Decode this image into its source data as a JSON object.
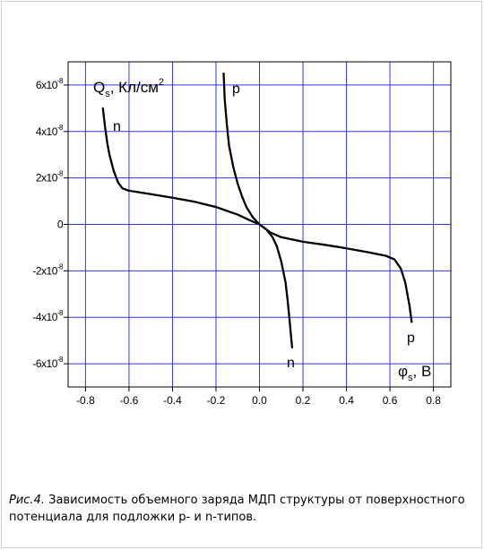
{
  "chart_data": {
    "type": "line",
    "x_ticks": [
      -0.8,
      -0.6,
      -0.4,
      -0.2,
      0.0,
      0.2,
      0.4,
      0.6,
      0.8
    ],
    "x_tick_labels": [
      "-0.8",
      "-0.6",
      "-0.4",
      "-0.2",
      "0.0",
      "0.2",
      "0.4",
      "0.6",
      "0.8"
    ],
    "y_ticks": [
      -6e-08,
      -4e-08,
      -2e-08,
      0,
      2e-08,
      4e-08,
      6e-08
    ],
    "y_tick_labels": [
      {
        "mant": "-6x10",
        "exp": "-8"
      },
      {
        "mant": "-4x10",
        "exp": "-8"
      },
      {
        "mant": "-2x10",
        "exp": "-8"
      },
      {
        "mant": "0",
        "exp": ""
      },
      {
        "mant": "2x10",
        "exp": "-8"
      },
      {
        "mant": "4x10",
        "exp": "-8"
      },
      {
        "mant": "6x10",
        "exp": "-8"
      }
    ],
    "xlim": [
      -0.88,
      0.88
    ],
    "ylim": [
      -7e-08,
      7e-08
    ],
    "grid": true,
    "grid_color": "#3333ff",
    "line_color": "#000000",
    "ylabel": {
      "main": "Q",
      "sub": "s",
      "unit": ", Кл/см",
      "sup": "2"
    },
    "xlabel": {
      "main": "φ",
      "sub": "s",
      "unit": ", В"
    },
    "series": [
      {
        "label_top": "n",
        "label_bottom": "n",
        "points": [
          [
            -0.72,
            5e-08
          ],
          [
            -0.71,
            4.2e-08
          ],
          [
            -0.7,
            3.5e-08
          ],
          [
            -0.69,
            3e-08
          ],
          [
            -0.67,
            2.3e-08
          ],
          [
            -0.65,
            1.8e-08
          ],
          [
            -0.63,
            1.55e-08
          ],
          [
            -0.6,
            1.45e-08
          ],
          [
            -0.5,
            1.3e-08
          ],
          [
            -0.4,
            1.15e-08
          ],
          [
            -0.3,
            9.8e-09
          ],
          [
            -0.2,
            7.5e-09
          ],
          [
            -0.1,
            4.2e-09
          ],
          [
            -0.05,
            2e-09
          ],
          [
            0.0,
            0.0
          ],
          [
            0.03,
            -2e-09
          ],
          [
            0.06,
            -5.5e-09
          ],
          [
            0.08,
            -9.5e-09
          ],
          [
            0.1,
            -1.6e-08
          ],
          [
            0.12,
            -2.5e-08
          ],
          [
            0.13,
            -3.3e-08
          ],
          [
            0.14,
            -4.3e-08
          ],
          [
            0.15,
            -5.3e-08
          ]
        ]
      },
      {
        "label_top": "p",
        "label_bottom": "p",
        "points": [
          [
            -0.165,
            6.5e-08
          ],
          [
            -0.16,
            5.4e-08
          ],
          [
            -0.15,
            4.3e-08
          ],
          [
            -0.14,
            3.4e-08
          ],
          [
            -0.12,
            2.45e-08
          ],
          [
            -0.1,
            1.75e-08
          ],
          [
            -0.08,
            1.2e-08
          ],
          [
            -0.06,
            7.5e-09
          ],
          [
            -0.03,
            3e-09
          ],
          [
            0.0,
            0.0
          ],
          [
            0.05,
            -3.5e-09
          ],
          [
            0.1,
            -5.5e-09
          ],
          [
            0.2,
            -7.5e-09
          ],
          [
            0.3,
            -8.8e-09
          ],
          [
            0.4,
            -1.03e-08
          ],
          [
            0.5,
            -1.2e-08
          ],
          [
            0.58,
            -1.35e-08
          ],
          [
            0.62,
            -1.5e-08
          ],
          [
            0.65,
            -1.9e-08
          ],
          [
            0.67,
            -2.5e-08
          ],
          [
            0.68,
            -3e-08
          ],
          [
            0.69,
            -3.5e-08
          ],
          [
            0.7,
            -4.2e-08
          ]
        ]
      }
    ]
  },
  "caption": {
    "figure_label": "Рис.4.",
    "text": "Зависимость объемного заряда МДП структуры от поверхностного потенциала для подложки p- и n-типов."
  }
}
